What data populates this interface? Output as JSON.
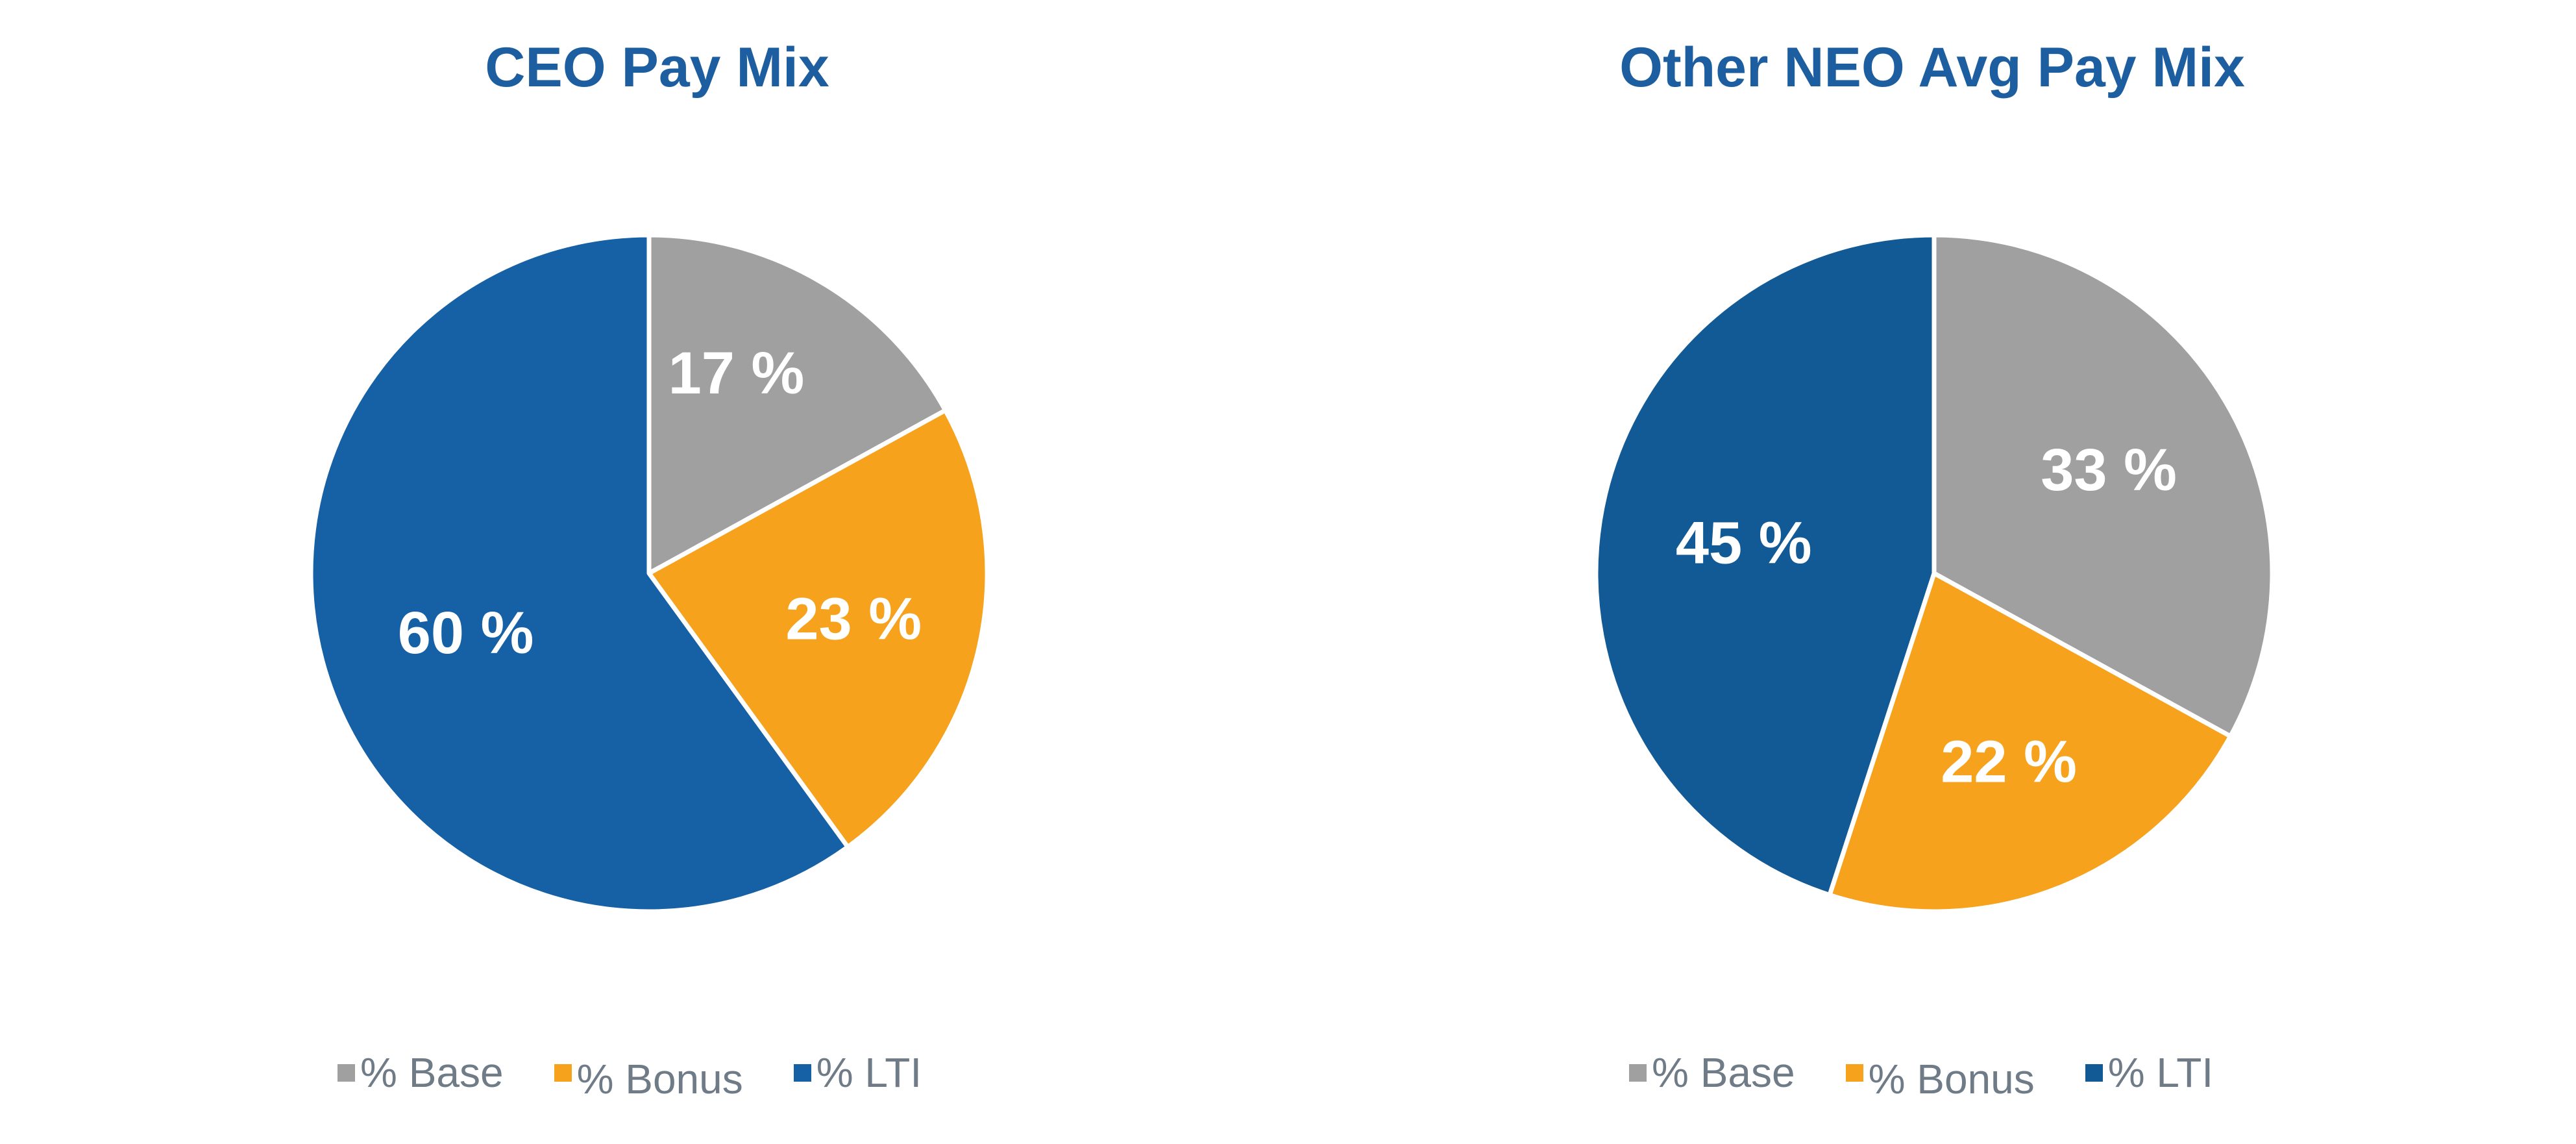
{
  "colors": {
    "base": "#a0a0a0",
    "bonus": "#f6a21d",
    "lti": "#1660a6",
    "lti_alt": "#115a96",
    "title": "#1c5e9f",
    "legend_text": "#6f7c88"
  },
  "chart_data": [
    {
      "type": "pie",
      "title": "CEO Pay Mix",
      "categories": [
        "% Base",
        "% Bonus",
        "% LTI"
      ],
      "values": [
        17,
        23,
        60
      ],
      "data_labels": [
        "17 %",
        "23 %",
        "60 %"
      ],
      "legend": [
        "% Base",
        "% Bonus",
        "% LTI"
      ],
      "legend_position": "bottom"
    },
    {
      "type": "pie",
      "title": "Other NEO Avg Pay Mix",
      "categories": [
        "% Base",
        "% Bonus",
        "% LTI"
      ],
      "values": [
        33,
        22,
        45
      ],
      "data_labels": [
        "33 %",
        "22 %",
        "45 %"
      ],
      "legend": [
        "% Base",
        "% Bonus",
        "% LTI"
      ],
      "legend_position": "bottom"
    }
  ]
}
